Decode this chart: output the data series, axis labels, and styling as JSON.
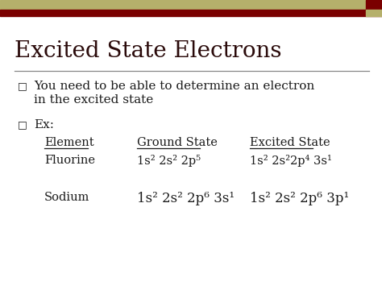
{
  "title": "Excited State Electrons",
  "title_fontsize": 20,
  "title_color": "#2a0a0a",
  "bg_color": "#ffffff",
  "header_bar1_color": "#b5b06b",
  "header_bar2_color": "#7a0000",
  "bullet_char": "□",
  "bullet1_line1": "You need to be able to determine an electron",
  "bullet1_line2": "in the excited state",
  "bullet2_text": "Ex:",
  "col_element": "Element",
  "col_ground": "Ground State",
  "col_excited": "Excited State",
  "row1_element": "Fluorine",
  "row1_ground": "1s² 2s² 2p⁵",
  "row1_excited": "1s² 2s²2p⁴ 3s¹",
  "row2_element": "Sodium",
  "row2_ground": "1s² 2s² 2p⁶ 3s¹",
  "row2_excited": "1s² 2s² 2p⁶ 3p¹",
  "text_color": "#1a1a1a",
  "font_family": "DejaVu Serif",
  "body_fontsize": 11,
  "table_fontsize": 10.5
}
